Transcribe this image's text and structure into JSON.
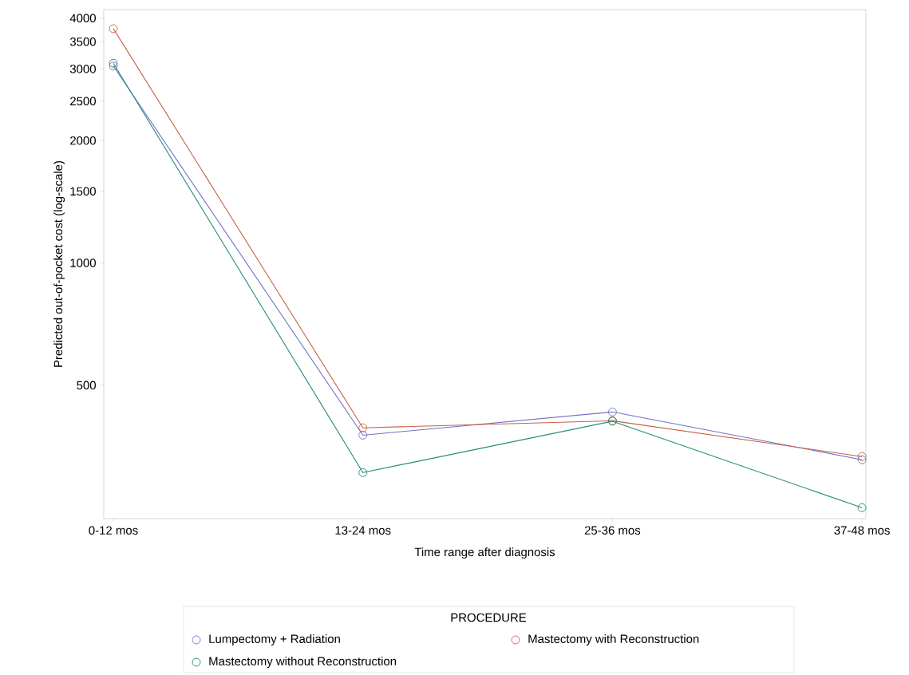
{
  "chart_data": {
    "type": "line",
    "xlabel": "Time range after diagnosis",
    "ylabel": "Predicted out-of-pocket cost (log-scale)",
    "legend_title": "PROCEDURE",
    "legend": "bottom",
    "log": "y",
    "marker": "circle",
    "line_style": "solid",
    "grid": false,
    "categories": [
      "0-12 mos",
      "13-24 mos",
      "25-36 mos",
      "37-48 mos"
    ],
    "ylim": [
      235,
      4200
    ],
    "yticks": [
      500,
      1000,
      1500,
      2000,
      2500,
      3000,
      3500,
      4000
    ],
    "series": [
      {
        "name": "Lumpectomy + Radiation",
        "color": "#6f73c4",
        "values": [
          3050,
          377,
          430,
          328
        ]
      },
      {
        "name": "Mastectomy with Reconstruction",
        "color": "#c8604a",
        "values": [
          3770,
          393,
          409,
          334
        ]
      },
      {
        "name": "Mastectomy without Reconstruction",
        "color": "#1f8a78",
        "values": [
          3100,
          305,
          408,
          250
        ]
      }
    ]
  }
}
